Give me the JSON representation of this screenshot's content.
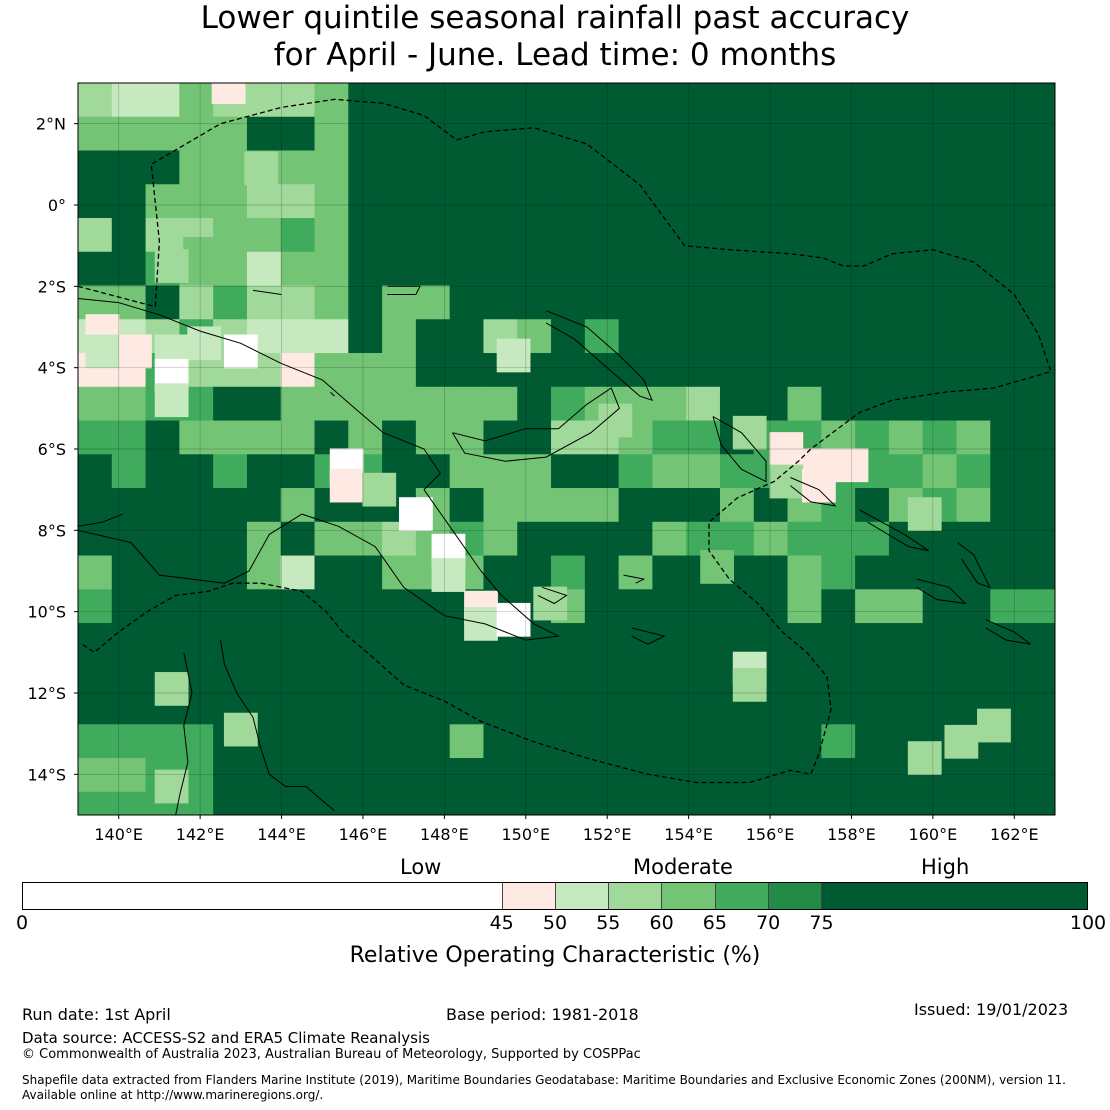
{
  "title": {
    "line1": "Lower quintile seasonal rainfall past accuracy",
    "line2": "for April - June. Lead time: 0 months"
  },
  "map": {
    "lon_range": [
      139,
      163
    ],
    "lat_range": [
      -15,
      3
    ],
    "lon_ticks": [
      "140°E",
      "142°E",
      "144°E",
      "146°E",
      "148°E",
      "150°E",
      "152°E",
      "154°E",
      "156°E",
      "158°E",
      "160°E",
      "162°E"
    ],
    "lat_ticks": [
      "2°N",
      "0°",
      "2°S",
      "4°S",
      "6°S",
      "8°S",
      "10°S",
      "12°S",
      "14°S"
    ],
    "cell_size_deg": 0.83,
    "grid_cols": 29,
    "grid_rows": 22,
    "roc_grid": [
      "58865556999999999999999999999",
      "66666996999999999999999999999",
      "99966666999999999999999999999",
      "99666556999999999999999999999",
      "59556676999999999999999999999",
      "99766866999999999999999999999",
      "66957556966999999999999999999",
      "44575444969956979999999999999",
      "33755536669999999999999999999",
      "66779966666669766659969999999",
      "77966669696699556779776767699",
      "97997997799666997667777776799",
      "99999969996966669996967967699",
      "99999696656769999677677799999",
      "69999689966699796999967999999",
      "79999999999999699999969669977",
      "99999999999999999999999999999",
      "99999999999999999999999999999",
      "99999999999999999999999999999",
      "77779999999699999999997999999",
      "66779999999999999999999999999",
      "77779999999999999999999999999"
    ],
    "patches": [
      {
        "lon": 142.7,
        "lat": 2.9,
        "v": 47
      },
      {
        "lon": 143.5,
        "lat": 0.9,
        "v": 57
      },
      {
        "lon": 142.0,
        "lat": -1.2,
        "v": 62
      },
      {
        "lon": 141.3,
        "lat": -1.5,
        "v": 55
      },
      {
        "lon": 139.6,
        "lat": -3.1,
        "v": 47
      },
      {
        "lon": 140.4,
        "lat": -3.6,
        "v": 48
      },
      {
        "lon": 141.3,
        "lat": -3.6,
        "v": 52
      },
      {
        "lon": 143.0,
        "lat": -3.6,
        "v": 40
      },
      {
        "lon": 142.1,
        "lat": -3.4,
        "v": 53
      },
      {
        "lon": 141.3,
        "lat": -4.2,
        "v": 40
      },
      {
        "lon": 141.3,
        "lat": -4.8,
        "v": 53
      },
      {
        "lon": 139.6,
        "lat": -3.6,
        "v": 54
      },
      {
        "lon": 145.6,
        "lat": -6.4,
        "v": 40
      },
      {
        "lon": 145.6,
        "lat": -6.9,
        "v": 48
      },
      {
        "lon": 146.4,
        "lat": -7.0,
        "v": 55
      },
      {
        "lon": 147.3,
        "lat": -7.6,
        "v": 40
      },
      {
        "lon": 148.1,
        "lat": -8.5,
        "v": 40
      },
      {
        "lon": 148.1,
        "lat": -9.1,
        "v": 54
      },
      {
        "lon": 148.9,
        "lat": -9.9,
        "v": 47
      },
      {
        "lon": 148.9,
        "lat": -10.3,
        "v": 52
      },
      {
        "lon": 149.7,
        "lat": -10.2,
        "v": 40
      },
      {
        "lon": 150.6,
        "lat": -9.8,
        "v": 56
      },
      {
        "lon": 149.7,
        "lat": -3.7,
        "v": 54
      },
      {
        "lon": 155.5,
        "lat": -5.6,
        "v": 57
      },
      {
        "lon": 156.4,
        "lat": -6.0,
        "v": 47
      },
      {
        "lon": 157.2,
        "lat": -6.4,
        "v": 48
      },
      {
        "lon": 158.0,
        "lat": -6.4,
        "v": 47
      },
      {
        "lon": 156.4,
        "lat": -6.8,
        "v": 55
      },
      {
        "lon": 157.2,
        "lat": -6.9,
        "v": 48
      },
      {
        "lon": 155.5,
        "lat": -11.4,
        "v": 54
      },
      {
        "lon": 155.5,
        "lat": -11.8,
        "v": 58
      },
      {
        "lon": 159.8,
        "lat": -7.6,
        "v": 57
      },
      {
        "lon": 161.5,
        "lat": -12.8,
        "v": 56
      },
      {
        "lon": 160.7,
        "lat": -13.2,
        "v": 58
      },
      {
        "lon": 159.8,
        "lat": -13.6,
        "v": 58
      },
      {
        "lon": 141.3,
        "lat": -11.9,
        "v": 55
      },
      {
        "lon": 141.3,
        "lat": -14.3,
        "v": 57
      },
      {
        "lon": 143.0,
        "lat": -12.9,
        "v": 57
      },
      {
        "lon": 154.7,
        "lat": -8.9,
        "v": 62
      },
      {
        "lon": 152.2,
        "lat": -5.3,
        "v": 56
      }
    ]
  },
  "colorbar": {
    "boundaries": [
      0,
      45,
      50,
      55,
      60,
      65,
      70,
      75,
      100
    ],
    "tick_labels": [
      "0",
      "45",
      "50",
      "55",
      "60",
      "65",
      "70",
      "75",
      "100"
    ],
    "colors": [
      "#ffffff",
      "#feeae2",
      "#c7e9c0",
      "#a1d99b",
      "#74c476",
      "#41ab5d",
      "#238b45",
      "#005a32"
    ],
    "category_labels": {
      "low": "Low",
      "moderate": "Moderate",
      "high": "High"
    },
    "axis_label": "Relative Operating Characteristic (%)"
  },
  "footer": {
    "run_date": "Run date: 1st April",
    "base_period": "Base period: 1981-2018",
    "issued": "Issued: 19/01/2023",
    "data_source": "Data source: ACCESS-S2 and ERA5 Climate Reanalysis",
    "copyright": "© Commonwealth of Australia 2023, Australian Bureau of Meteorology, Supported by COSPPac",
    "shapefile_line1": "Shapefile data extracted from Flanders Marine Institute (2019), Maritime Boundaries Geodatabase: Maritime Boundaries and Exclusive Economic Zones (200NM), version 11.",
    "shapefile_line2": "Available online at http://www.marineregions.org/."
  }
}
